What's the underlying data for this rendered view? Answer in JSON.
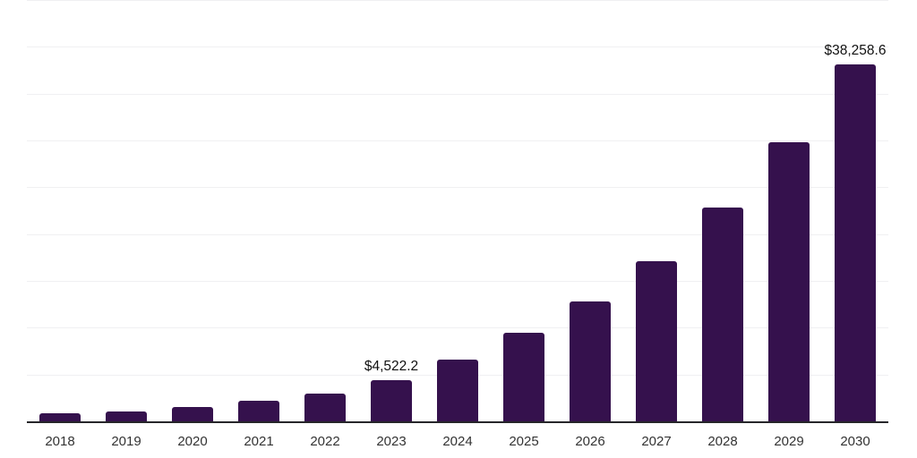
{
  "chart": {
    "background_color": "#ffffff",
    "bar_color": "#35114d",
    "axis_line_color": "#26262a",
    "gridline_color": "#f0f0f2",
    "value_label_color": "#111111",
    "tick_label_color": "#333333"
  },
  "chart_data": {
    "type": "bar",
    "title": "",
    "xlabel": "",
    "ylabel": "",
    "categories": [
      "2018",
      "2019",
      "2020",
      "2021",
      "2022",
      "2023",
      "2024",
      "2025",
      "2026",
      "2027",
      "2028",
      "2029",
      "2030"
    ],
    "values": [
      955,
      1190,
      1670,
      2340,
      3060,
      4522.2,
      6690,
      9510,
      12900,
      17200,
      22930,
      29860,
      38258.6
    ],
    "point_labels": [
      "",
      "",
      "",
      "",
      "",
      "$4,522.2",
      "",
      "",
      "",
      "",
      "",
      "",
      "$38,258.6"
    ],
    "ylim": [
      0,
      45000
    ],
    "gridline_step": 5000,
    "gridline_count": 9,
    "grid_visible": true,
    "y_axis_tick_labels_visible": false,
    "legend_position": "none"
  }
}
